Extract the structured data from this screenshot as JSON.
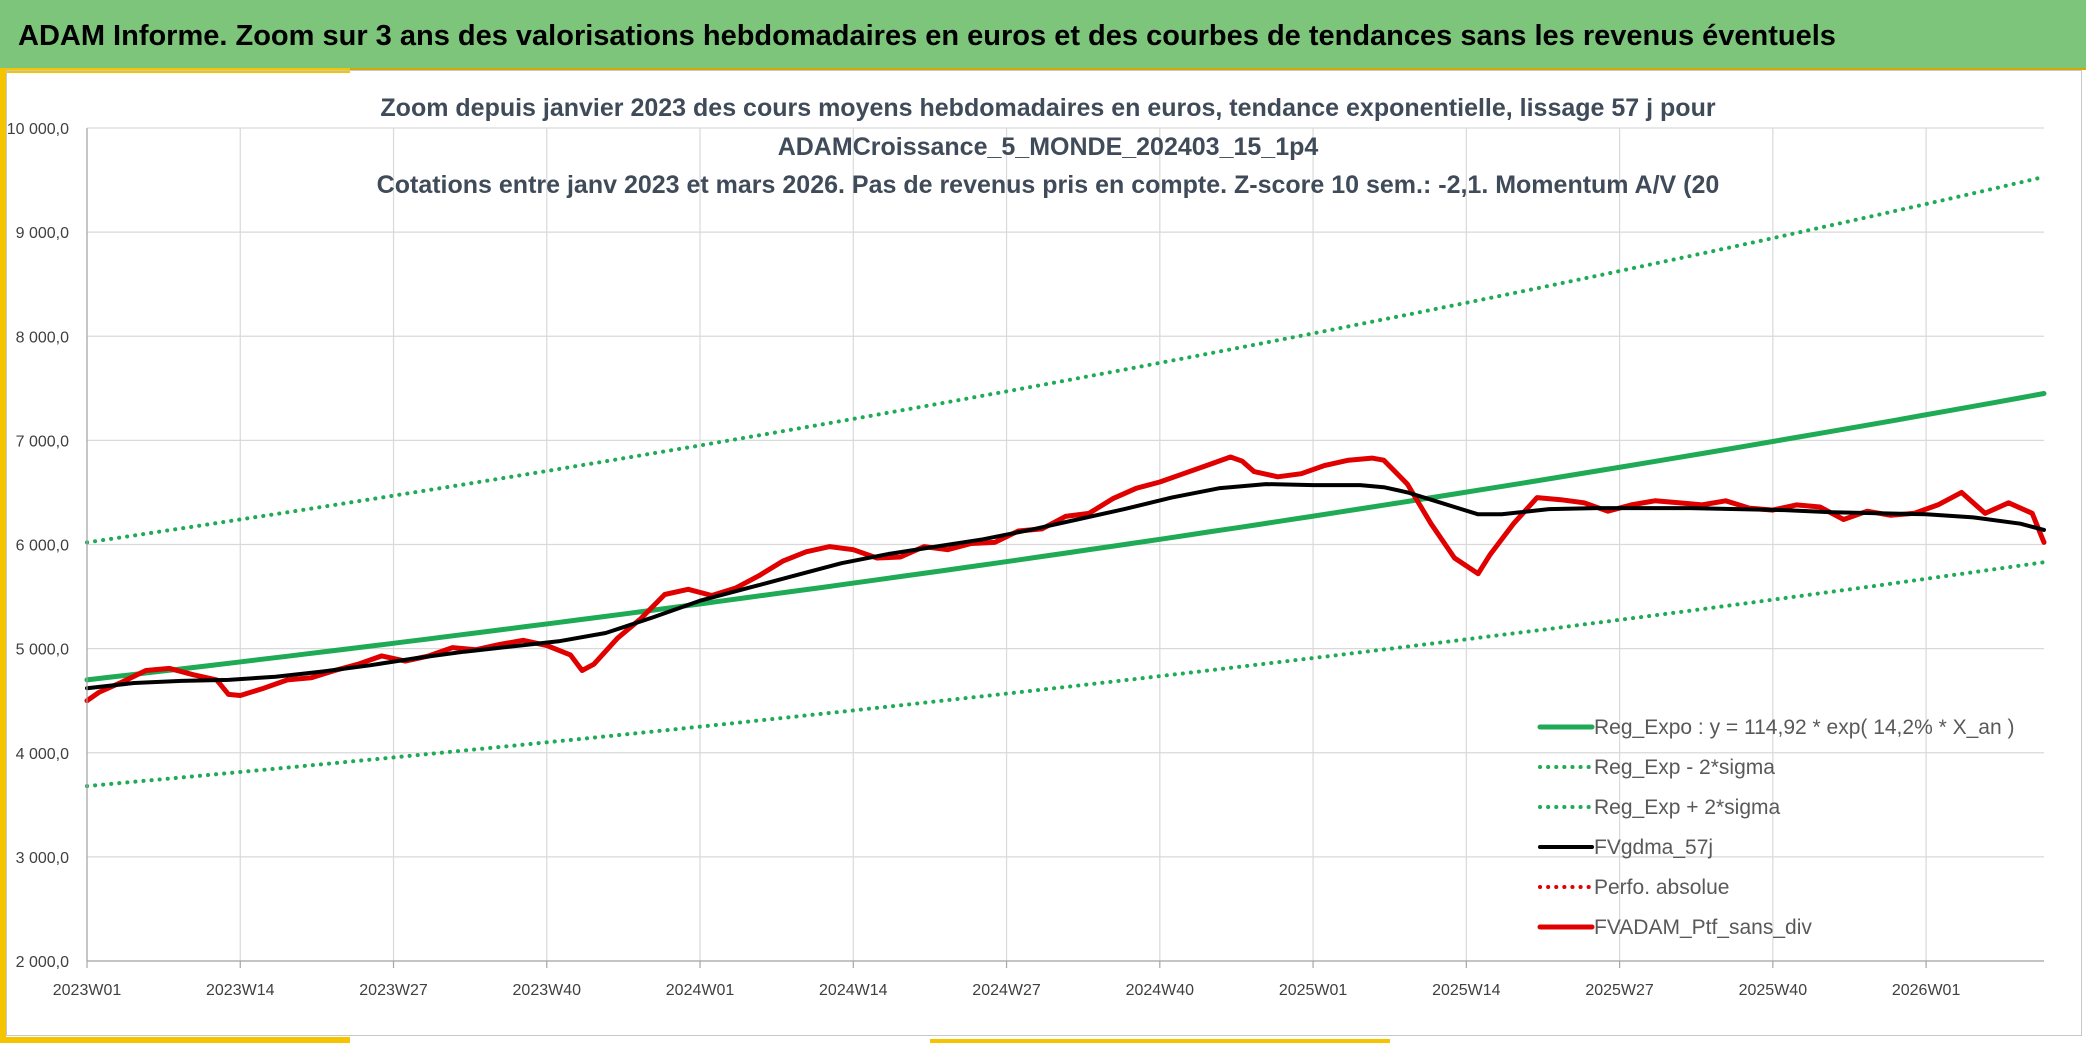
{
  "header": {
    "title": "ADAM Informe. Zoom sur 3 ans des valorisations hebdomadaires en euros et des courbes de tendances sans les revenus éventuels"
  },
  "colors": {
    "header_bg": "#7dc57a",
    "accent_yellow": "#f5c400",
    "reg_green": "#1faa55",
    "black_line": "#000000",
    "red_line": "#e00000",
    "grid": "#d9d9d9"
  },
  "chart_data": {
    "type": "line",
    "title": [
      "Zoom depuis janvier 2023 des cours moyens hebdomadaires en euros, tendance exponentielle, lissage 57 j pour",
      "ADAMCroissance_5_MONDE_202403_15_1p4",
      "Cotations entre janv 2023 et mars 2026. Pas de revenus pris en compte. Z-score 10 sem.: -2,1. Momentum A/V (20"
    ],
    "xlabel": "",
    "ylabel": "",
    "ylim": [
      2000,
      10000
    ],
    "xlim": [
      0,
      166
    ],
    "grid": true,
    "legend_position": "bottom-right",
    "y_ticks": [
      {
        "value": 2000,
        "label": "2 000,0"
      },
      {
        "value": 3000,
        "label": "3 000,0"
      },
      {
        "value": 4000,
        "label": "4 000,0"
      },
      {
        "value": 5000,
        "label": "5 000,0"
      },
      {
        "value": 6000,
        "label": "6 000,0"
      },
      {
        "value": 7000,
        "label": "7 000,0"
      },
      {
        "value": 8000,
        "label": "8 000,0"
      },
      {
        "value": 9000,
        "label": "9 000,0"
      },
      {
        "value": 10000,
        "label": "10 000,0"
      }
    ],
    "x_ticks": [
      {
        "week": 0,
        "label": "2023W01"
      },
      {
        "week": 13,
        "label": "2023W14"
      },
      {
        "week": 26,
        "label": "2023W27"
      },
      {
        "week": 39,
        "label": "2023W40"
      },
      {
        "week": 52,
        "label": "2024W01"
      },
      {
        "week": 65,
        "label": "2024W14"
      },
      {
        "week": 78,
        "label": "2024W27"
      },
      {
        "week": 91,
        "label": "2024W40"
      },
      {
        "week": 104,
        "label": "2025W01"
      },
      {
        "week": 117,
        "label": "2025W14"
      },
      {
        "week": 130,
        "label": "2025W27"
      },
      {
        "week": 143,
        "label": "2025W40"
      },
      {
        "week": 156,
        "label": "2026W01"
      }
    ],
    "series": [
      {
        "name": "Reg_Expo : y = 114,92 * exp( 14,2% *  X_an )",
        "style": "solid",
        "color": "#1faa55",
        "width": 5,
        "x": [
          0,
          166
        ],
        "values": [
          4700,
          7450
        ],
        "curve": "exponential"
      },
      {
        "name": "Reg_Exp - 2*sigma",
        "style": "dotted",
        "color": "#1faa55",
        "width": 4,
        "x": [
          0,
          166
        ],
        "values": [
          3680,
          5830
        ],
        "curve": "exponential"
      },
      {
        "name": "Reg_Exp + 2*sigma",
        "style": "dotted",
        "color": "#1faa55",
        "width": 4,
        "x": [
          0,
          166
        ],
        "values": [
          6020,
          9530
        ],
        "curve": "exponential"
      },
      {
        "name": "FVgdma_57j",
        "style": "solid",
        "color": "#000000",
        "width": 4,
        "x": [
          0,
          4,
          8,
          12,
          16,
          20,
          24,
          28,
          32,
          36,
          40,
          44,
          48,
          52,
          56,
          60,
          64,
          68,
          72,
          76,
          80,
          84,
          88,
          92,
          96,
          100,
          104,
          108,
          110,
          112,
          114,
          116,
          118,
          120,
          124,
          128,
          132,
          136,
          140,
          144,
          148,
          152,
          156,
          160,
          164,
          166
        ],
        "values": [
          4620,
          4670,
          4690,
          4700,
          4730,
          4780,
          4840,
          4910,
          4970,
          5020,
          5070,
          5150,
          5300,
          5460,
          5580,
          5700,
          5820,
          5910,
          5980,
          6050,
          6140,
          6240,
          6340,
          6450,
          6540,
          6580,
          6570,
          6570,
          6550,
          6500,
          6430,
          6360,
          6290,
          6290,
          6340,
          6350,
          6350,
          6350,
          6340,
          6330,
          6310,
          6300,
          6290,
          6260,
          6200,
          6140
        ]
      },
      {
        "name": "Perfo. absolue",
        "style": "dotted",
        "color": "#e00000",
        "width": 4,
        "x": [],
        "values": []
      },
      {
        "name": "FVADAM_Ptf_sans_div",
        "style": "solid",
        "color": "#e00000",
        "width": 5,
        "x": [
          0,
          1,
          3,
          5,
          7,
          9,
          11,
          12,
          13,
          15,
          17,
          19,
          21,
          23,
          25,
          27,
          29,
          31,
          33,
          35,
          37,
          39,
          41,
          42,
          43,
          45,
          47,
          49,
          51,
          53,
          55,
          57,
          59,
          61,
          63,
          65,
          67,
          69,
          71,
          73,
          75,
          77,
          79,
          81,
          83,
          85,
          87,
          89,
          91,
          93,
          95,
          97,
          98,
          99,
          101,
          103,
          105,
          107,
          109,
          110,
          112,
          114,
          116,
          118,
          119,
          121,
          123,
          125,
          127,
          129,
          131,
          133,
          135,
          137,
          139,
          141,
          143,
          145,
          147,
          149,
          151,
          153,
          155,
          157,
          159,
          161,
          163,
          165,
          166
        ],
        "values": [
          4500,
          4580,
          4680,
          4790,
          4810,
          4750,
          4700,
          4560,
          4550,
          4620,
          4700,
          4720,
          4790,
          4850,
          4930,
          4880,
          4930,
          5010,
          4990,
          5040,
          5080,
          5030,
          4940,
          4790,
          4850,
          5100,
          5290,
          5520,
          5570,
          5510,
          5580,
          5700,
          5840,
          5930,
          5980,
          5950,
          5870,
          5880,
          5980,
          5950,
          6010,
          6020,
          6130,
          6150,
          6270,
          6300,
          6440,
          6540,
          6600,
          6680,
          6760,
          6840,
          6800,
          6700,
          6650,
          6680,
          6760,
          6810,
          6830,
          6810,
          6580,
          6200,
          5870,
          5720,
          5900,
          6200,
          6450,
          6430,
          6400,
          6320,
          6380,
          6420,
          6400,
          6380,
          6420,
          6350,
          6330,
          6380,
          6360,
          6240,
          6320,
          6280,
          6300,
          6380,
          6500,
          6300,
          6400,
          6300,
          6020
        ]
      }
    ]
  }
}
